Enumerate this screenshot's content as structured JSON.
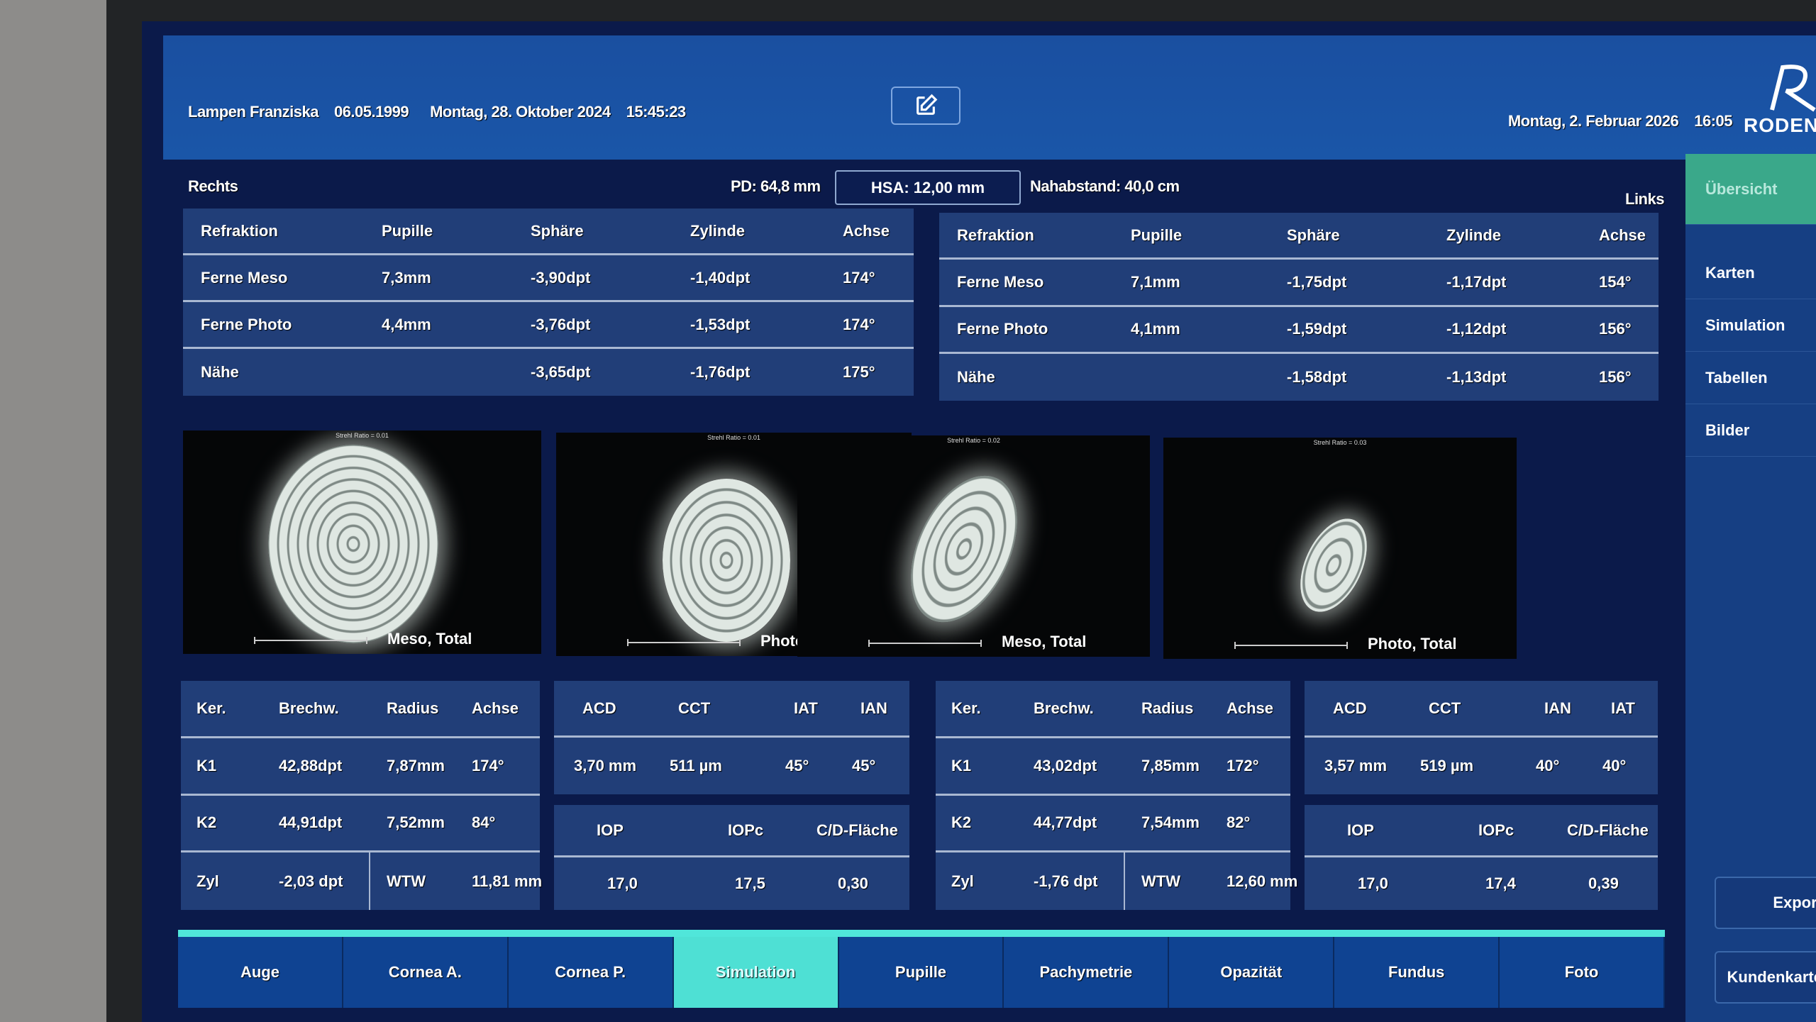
{
  "header": {
    "patient_name": "Lampen Franziska",
    "birth_date": "06.05.1999",
    "exam_date": "Montag, 28. Oktober 2024",
    "exam_time": "15:45:23",
    "current_date": "Montag, 2. Februar 2026",
    "current_time": "16:05",
    "logo_text": "RODENSTOCK",
    "edit_icon": "edit-icon"
  },
  "measure": {
    "right_label": "Rechts",
    "left_label": "Links",
    "pd": "PD: 64,8 mm",
    "hsa": "HSA: 12,00 mm",
    "near": "Nahabstand: 40,0 cm"
  },
  "refraction_right": {
    "headers": [
      "Refraktion",
      "Pupille",
      "Sphäre",
      "Zylinde",
      "Achse"
    ],
    "rows": [
      [
        "Ferne Meso",
        "7,3mm",
        "-3,90dpt",
        "-1,40dpt",
        "174°"
      ],
      [
        "Ferne Photo",
        "4,4mm",
        "-3,76dpt",
        "-1,53dpt",
        "174°"
      ],
      [
        "Nähe",
        "",
        "-3,65dpt",
        "-1,76dpt",
        "175°"
      ]
    ]
  },
  "refraction_left": {
    "headers": [
      "Refraktion",
      "Pupille",
      "Sphäre",
      "Zylinde",
      "Achse"
    ],
    "rows": [
      [
        "Ferne Meso",
        "7,1mm",
        "-1,75dpt",
        "-1,17dpt",
        "154°"
      ],
      [
        "Ferne Photo",
        "4,1mm",
        "-1,59dpt",
        "-1,12dpt",
        "156°"
      ],
      [
        "Nähe",
        "",
        "-1,58dpt",
        "-1,13dpt",
        "156°"
      ]
    ]
  },
  "images": [
    {
      "strehl": "Strehl Ratio = 0.01",
      "label": "Meso, Total",
      "scale": "5'"
    },
    {
      "strehl": "Strehl Ratio = 0.01",
      "label": "Photo, Total",
      "scale": "5'"
    },
    {
      "strehl": "Strehl Ratio = 0.02",
      "label": "Meso, Total",
      "scale": "5'"
    },
    {
      "strehl": "Strehl Ratio = 0.03",
      "label": "Photo, Total",
      "scale": "5'"
    }
  ],
  "ker_right": {
    "headers": [
      "Ker.",
      "Brechw.",
      "Radius",
      "Achse"
    ],
    "k1": [
      "K1",
      "42,88dpt",
      "7,87mm",
      "174°"
    ],
    "k2": [
      "K2",
      "44,91dpt",
      "7,52mm",
      "84°"
    ],
    "zyl": [
      "Zyl",
      "-2,03 dpt",
      "WTW",
      "11,81 mm"
    ]
  },
  "ker_left": {
    "headers": [
      "Ker.",
      "Brechw.",
      "Radius",
      "Achse"
    ],
    "k1": [
      "K1",
      "43,02dpt",
      "7,85mm",
      "172°"
    ],
    "k2": [
      "K2",
      "44,77dpt",
      "7,54mm",
      "82°"
    ],
    "zyl": [
      "Zyl",
      "-1,76 dpt",
      "WTW",
      "12,60 mm"
    ]
  },
  "ac_right": {
    "headers": [
      "ACD",
      "CCT",
      "IAT",
      "IAN"
    ],
    "values": [
      "3,70 mm",
      "511 µm",
      "45°",
      "45°"
    ],
    "iop_headers": [
      "IOP",
      "IOPc",
      "C/D-Fläche"
    ],
    "iop_values": [
      "17,0",
      "17,5",
      "0,30"
    ]
  },
  "ac_left": {
    "headers": [
      "ACD",
      "CCT",
      "IAN",
      "IAT"
    ],
    "values": [
      "3,57 mm",
      "519 µm",
      "40°",
      "40°"
    ],
    "iop_headers": [
      "IOP",
      "IOPc",
      "C/D-Fläche"
    ],
    "iop_values": [
      "17,0",
      "17,4",
      "0,39"
    ]
  },
  "sidebar": {
    "items": [
      {
        "label": "Übersicht",
        "active": true
      },
      {
        "label": "Karten"
      },
      {
        "label": "Simulation"
      },
      {
        "label": "Tabellen"
      },
      {
        "label": "Bilder"
      }
    ],
    "export": "Export",
    "customer": "Kundenkarte"
  },
  "tabs": [
    {
      "label": "Auge"
    },
    {
      "label": "Cornea A."
    },
    {
      "label": "Cornea P."
    },
    {
      "label": "Simulation",
      "active": true
    },
    {
      "label": "Pupille"
    },
    {
      "label": "Pachymetrie"
    },
    {
      "label": "Opazität"
    },
    {
      "label": "Fundus"
    },
    {
      "label": "Foto"
    }
  ],
  "colors": {
    "accent": "#4ee0d4",
    "active_sidebar": "#3aa88a",
    "header": "#1a4fa0",
    "panel": "#213e78",
    "background": "#0b1a4a"
  }
}
